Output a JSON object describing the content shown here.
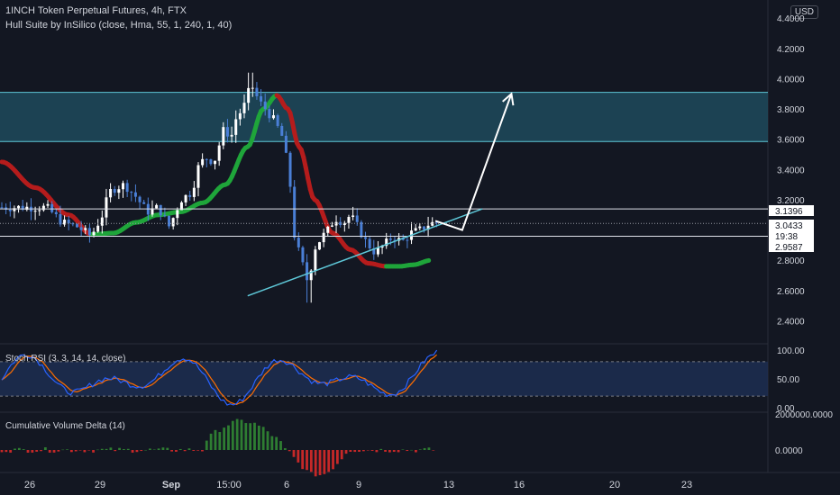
{
  "header": {
    "title": "1INCH Token Perpetual Futures, 4h, FTX",
    "indicator": "Hull Suite by InSilico (close, Hma, 55, 1, 240, 1, 40)",
    "currency": "USD"
  },
  "colors": {
    "background": "#131722",
    "bull_candle": "#ffffff",
    "bear_candle": "#4a7fd6",
    "hull_up": "#1fa53a",
    "hull_down": "#b51c1c",
    "zone_fill": "#1f4a5c",
    "zone_border": "#5ec8d8",
    "trendline": "#5ec8d8",
    "rsi_k": "#2962ff",
    "rsi_d": "#ff6d00",
    "rsi_band": "#1e2f55",
    "cvd_pos": "#2e7d32",
    "cvd_neg": "#c62828"
  },
  "chart_data": [
    {
      "type": "candlestick",
      "title": "1INCH Token Perpetual Futures, 4h, FTX",
      "y_ticks": [
        "4.4000",
        "4.2000",
        "4.0000",
        "3.8000",
        "3.6000",
        "3.4000",
        "3.2000",
        "2.8000",
        "2.6000",
        "2.4000"
      ],
      "ylim": [
        2.26,
        4.52
      ],
      "x_ticks": [
        "26",
        "29",
        "Sep",
        "15:00",
        "6",
        "9",
        "13",
        "16",
        "20",
        "23"
      ],
      "price_labels": [
        {
          "label": "3.1396",
          "value": 3.1396,
          "style": "line"
        },
        {
          "label": "3.0433",
          "value": 3.0433,
          "style": "current"
        },
        {
          "label": "19:38",
          "value": 2.99,
          "style": "timer"
        },
        {
          "label": "2.9587",
          "value": 2.9587,
          "style": "line"
        }
      ],
      "zone": {
        "low": 3.585,
        "high": 3.91
      },
      "trendline": {
        "from": [
          -9.0,
          2.565
        ],
        "to": [
          1.5,
          3.14
        ]
      },
      "projection_arrow": [
        [
          0.6,
          3.0
        ],
        [
          2.8,
          3.9
        ]
      ],
      "candles": [],
      "hull": []
    },
    {
      "type": "line",
      "title": "Stoch RSI (3, 3, 14, 14, close)",
      "y_ticks": [
        "100.00",
        "50.00",
        "0.00"
      ],
      "ylim": [
        -5,
        108
      ],
      "band": [
        20,
        80
      ],
      "series": [
        {
          "role": "k",
          "values": []
        },
        {
          "role": "d",
          "values": []
        }
      ]
    },
    {
      "type": "bar",
      "title": "Cumulative Volume Delta (14)",
      "y_ticks": [
        "2000000.0000",
        "0.0000"
      ],
      "values": []
    }
  ]
}
